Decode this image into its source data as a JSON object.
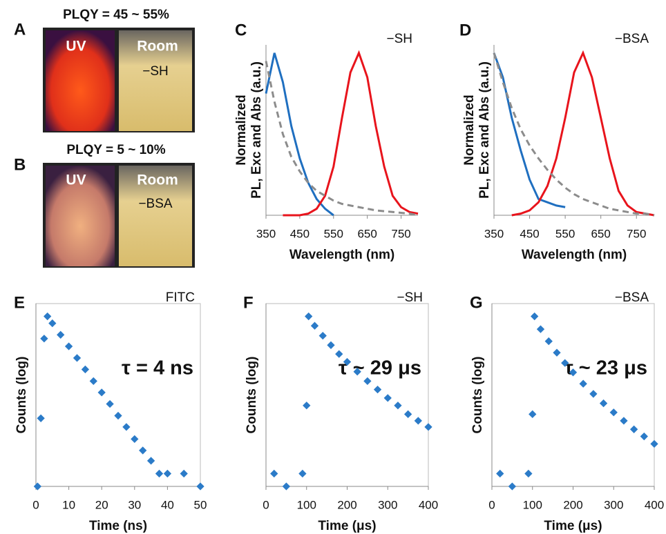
{
  "photos": [
    {
      "label": "A",
      "title": "PLQY = 45 ~ 55%",
      "left": "UV",
      "right": "Room",
      "sample": "−SH"
    },
    {
      "label": "B",
      "title": "PLQY = 5 ~ 10%",
      "left": "UV",
      "right": "Room",
      "sample": "−BSA"
    }
  ],
  "chart_data": [
    {
      "type": "line",
      "label": "C",
      "annotations": [
        "−SH"
      ],
      "ylabel": [
        "Normalized",
        "PL, Exc and Abs (a.u.)"
      ],
      "xlabel": "Wavelength (nm)",
      "x": [
        350,
        375,
        400,
        425,
        450,
        475,
        500,
        525,
        550,
        575,
        600,
        625,
        650,
        675,
        700,
        725,
        750,
        775,
        800
      ],
      "xlim": [
        350,
        800
      ],
      "xticks": [
        350,
        450,
        550,
        650,
        750
      ],
      "ylim": [
        0,
        1.05
      ],
      "series": [
        {
          "color": "#1f6fc0",
          "values": [
            0.75,
            1.0,
            0.82,
            0.55,
            0.35,
            0.2,
            0.1,
            0.04,
            0.0,
            null,
            null,
            null,
            null,
            null,
            null,
            null,
            null,
            null,
            null
          ]
        },
        {
          "color": "#e8141c",
          "values": [
            null,
            null,
            0,
            0,
            0,
            0.01,
            0.04,
            0.12,
            0.3,
            0.6,
            0.88,
            1.0,
            0.85,
            0.55,
            0.3,
            0.12,
            0.05,
            0.02,
            0.01
          ]
        },
        {
          "color": "#8c8c8c",
          "dash": true,
          "values": [
            0.95,
            0.7,
            0.5,
            0.36,
            0.27,
            0.2,
            0.15,
            0.12,
            0.09,
            0.07,
            0.06,
            0.05,
            0.04,
            0.03,
            0.025,
            0.02,
            0.015,
            0.01,
            0.0
          ]
        }
      ]
    },
    {
      "type": "line",
      "label": "D",
      "annotations": [
        "−BSA"
      ],
      "ylabel": [
        "Normalized",
        "PL, Exc and Abs (a.u.)"
      ],
      "xlabel": "Wavelength (nm)",
      "x": [
        350,
        375,
        400,
        425,
        450,
        475,
        500,
        525,
        550,
        575,
        600,
        625,
        650,
        675,
        700,
        725,
        750,
        775,
        800
      ],
      "xlim": [
        350,
        800
      ],
      "xticks": [
        350,
        450,
        550,
        650,
        750
      ],
      "ylim": [
        0,
        1.05
      ],
      "series": [
        {
          "color": "#1f6fc0",
          "values": [
            1.0,
            0.85,
            0.6,
            0.4,
            0.22,
            0.1,
            0.08,
            0.06,
            0.05,
            null,
            null,
            null,
            null,
            null,
            null,
            null,
            null,
            null,
            null
          ]
        },
        {
          "color": "#e8141c",
          "values": [
            null,
            null,
            0,
            0.01,
            0.03,
            0.08,
            0.18,
            0.35,
            0.6,
            0.88,
            1.0,
            0.85,
            0.6,
            0.35,
            0.15,
            0.06,
            0.02,
            0.01,
            0
          ]
        },
        {
          "color": "#8c8c8c",
          "dash": true,
          "values": [
            1.0,
            0.82,
            0.66,
            0.53,
            0.43,
            0.35,
            0.28,
            0.22,
            0.17,
            0.13,
            0.1,
            0.08,
            0.06,
            0.04,
            0.03,
            0.02,
            0.01,
            0.01,
            0.0
          ]
        }
      ]
    },
    {
      "type": "scatter",
      "label": "E",
      "annotations": [
        "FITC",
        "τ = 4 ns"
      ],
      "ylabel": "Counts (log)",
      "xlabel": "Time (ns)",
      "ylog": true,
      "x": [
        0.5,
        1.5,
        2.5,
        3.5,
        5,
        7.5,
        10,
        12.5,
        15,
        17.5,
        20,
        22.5,
        25,
        27.5,
        30,
        32.5,
        35,
        37.5,
        40,
        45,
        50
      ],
      "xlim": [
        0,
        50
      ],
      "xticks": [
        0,
        10,
        20,
        30,
        40,
        50
      ],
      "ylim": [
        1,
        20000
      ],
      "series": [
        {
          "color": "#2b7bc8",
          "values": [
            1,
            40,
            3000,
            10000,
            6870,
            3680,
            1970,
            1050,
            565,
            300,
            162,
            87,
            46,
            25,
            13,
            7,
            4,
            2,
            2,
            2,
            1
          ]
        }
      ]
    },
    {
      "type": "scatter",
      "label": "F",
      "annotations": [
        "−SH",
        "τ ~ 29 μs"
      ],
      "ylabel": "Counts (log)",
      "xlabel": "Time (μs)",
      "ylog": true,
      "x": [
        20,
        50,
        90,
        100,
        105,
        120,
        140,
        160,
        180,
        200,
        225,
        250,
        275,
        300,
        325,
        350,
        375,
        400
      ],
      "xlim": [
        0,
        400
      ],
      "xticks": [
        0,
        100,
        200,
        300,
        400
      ],
      "ylim": [
        1,
        20000
      ],
      "series": [
        {
          "color": "#2b7bc8",
          "values": [
            2,
            1,
            2,
            80,
            10000,
            6000,
            3500,
            2100,
            1300,
            850,
            500,
            300,
            190,
            120,
            80,
            50,
            35,
            25
          ]
        }
      ]
    },
    {
      "type": "scatter",
      "label": "G",
      "annotations": [
        "−BSA",
        "τ ~ 23 μs"
      ],
      "ylabel": "Counts (log)",
      "xlabel": "Time (μs)",
      "ylog": true,
      "x": [
        20,
        50,
        90,
        100,
        105,
        120,
        140,
        160,
        180,
        200,
        225,
        250,
        275,
        300,
        325,
        350,
        375,
        400
      ],
      "xlim": [
        0,
        400
      ],
      "xticks": [
        0,
        100,
        200,
        300,
        400
      ],
      "ylim": [
        1,
        20000
      ],
      "series": [
        {
          "color": "#2b7bc8",
          "values": [
            2,
            1,
            2,
            50,
            10000,
            5000,
            2600,
            1400,
            800,
            480,
            260,
            150,
            90,
            55,
            35,
            22,
            15,
            10
          ]
        }
      ]
    }
  ]
}
